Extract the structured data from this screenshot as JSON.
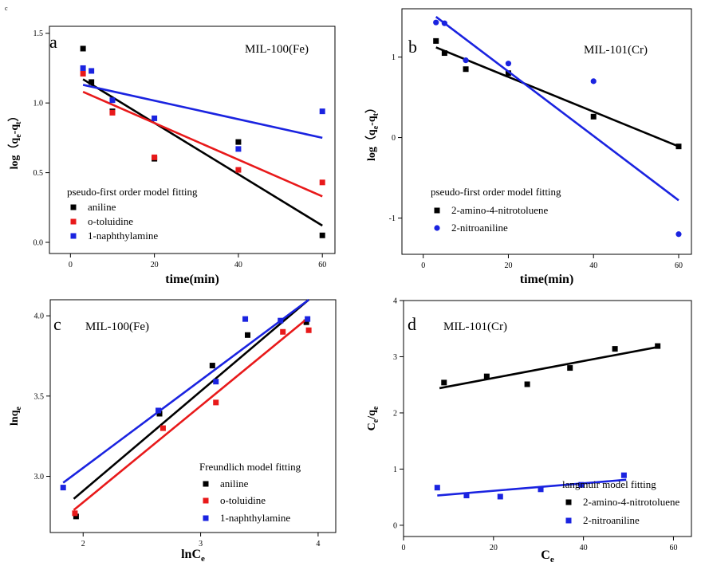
{
  "corner_mark": "c",
  "chart_data": [
    {
      "type": "scatter",
      "panel": "a",
      "title": "MIL-100(Fe)",
      "xlabel": "time(min)",
      "ylabel": "log（q",
      "ylabel_sub1": "e",
      "ylabel_mid": "-q",
      "ylabel_sub2": "t",
      "ylabel_end": "）",
      "xlim": [
        -5,
        63
      ],
      "ylim": [
        -0.08,
        1.55
      ],
      "xticks": [
        0,
        20,
        40,
        60
      ],
      "yticks": [
        0.0,
        0.5,
        1.0,
        1.5
      ],
      "ytick_labels": [
        "0.0",
        "0.5",
        "1.0",
        "1.5"
      ],
      "legend_title": "pseudo-first order model fitting",
      "legend_position": "bottom-left",
      "series": [
        {
          "name": "aniline",
          "color": "#000000",
          "marker": "square",
          "x": [
            3,
            5,
            10,
            20,
            40,
            60
          ],
          "y": [
            1.39,
            1.15,
            0.94,
            0.6,
            0.72,
            0.05
          ],
          "fit": [
            [
              3,
              1.17
            ],
            [
              60,
              0.12
            ]
          ]
        },
        {
          "name": "o-toluidine",
          "color": "#e8191a",
          "marker": "square",
          "x": [
            3,
            10,
            20,
            40,
            60
          ],
          "y": [
            1.21,
            0.93,
            0.61,
            0.52,
            0.43
          ],
          "fit": [
            [
              3,
              1.08
            ],
            [
              60,
              0.33
            ]
          ]
        },
        {
          "name": "1-naphthylamine",
          "color": "#1a23e0",
          "marker": "square",
          "x": [
            3,
            5,
            10,
            20,
            40,
            60
          ],
          "y": [
            1.25,
            1.23,
            1.02,
            0.89,
            0.67,
            0.94
          ],
          "fit": [
            [
              3,
              1.13
            ],
            [
              60,
              0.75
            ]
          ]
        }
      ]
    },
    {
      "type": "scatter",
      "panel": "b",
      "title": "MIL-101(Cr)",
      "xlabel": "time(min)",
      "ylabel": "log（q",
      "ylabel_sub1": "e",
      "ylabel_mid": "-q",
      "ylabel_sub2": "t",
      "ylabel_end": "）",
      "xlim": [
        -5,
        63
      ],
      "ylim": [
        -1.45,
        1.6
      ],
      "xticks": [
        0,
        20,
        40,
        60
      ],
      "yticks": [
        -1,
        0,
        1
      ],
      "ytick_labels": [
        "-1",
        "0",
        "1"
      ],
      "legend_title": "pseudo-first order model fitting",
      "legend_position": "bottom-left",
      "series": [
        {
          "name": "2-amino-4-nitrotoluene",
          "color": "#000000",
          "marker": "square",
          "x": [
            3,
            5,
            10,
            20,
            40,
            60
          ],
          "y": [
            1.2,
            1.05,
            0.85,
            0.8,
            0.26,
            -0.11
          ],
          "fit": [
            [
              3,
              1.12
            ],
            [
              60,
              -0.11
            ]
          ]
        },
        {
          "name": "2-nitroaniline",
          "color": "#1a23e0",
          "marker": "circle",
          "x": [
            3,
            5,
            10,
            20,
            40,
            60
          ],
          "y": [
            1.43,
            1.42,
            0.96,
            0.92,
            0.7,
            -1.2
          ],
          "fit": [
            [
              3,
              1.5
            ],
            [
              60,
              -0.78
            ]
          ]
        }
      ]
    },
    {
      "type": "scatter",
      "panel": "c",
      "title": "MIL-100(Fe)",
      "xlabel": "lnC",
      "xlabel_sub": "e",
      "ylabel": "lnq",
      "ylabel_sub1": "e",
      "ylabel_mid": "",
      "ylabel_sub2": "",
      "ylabel_end": "",
      "xlim": [
        1.72,
        4.15
      ],
      "ylim": [
        2.65,
        4.1
      ],
      "xticks": [
        2,
        3,
        4
      ],
      "yticks": [
        3.0,
        3.5,
        4.0
      ],
      "ytick_labels": [
        "3.0",
        "3.5",
        "4.0"
      ],
      "legend_title": "Freundlich model fitting",
      "legend_position": "bottom-right",
      "series": [
        {
          "name": "aniline",
          "color": "#000000",
          "marker": "square",
          "x": [
            1.94,
            2.65,
            3.1,
            3.4,
            3.9
          ],
          "y": [
            2.75,
            3.39,
            3.69,
            3.88,
            3.96
          ],
          "fit": [
            [
              1.92,
              2.86
            ],
            [
              3.92,
              4.1
            ]
          ]
        },
        {
          "name": "o-toluidine",
          "color": "#e8191a",
          "marker": "square",
          "x": [
            1.93,
            2.68,
            3.13,
            3.7,
            3.92
          ],
          "y": [
            2.77,
            3.3,
            3.46,
            3.9,
            3.91
          ],
          "fit": [
            [
              1.92,
              2.79
            ],
            [
              3.92,
              3.99
            ]
          ]
        },
        {
          "name": "1-naphthylamine",
          "color": "#1a23e0",
          "marker": "square",
          "x": [
            1.83,
            2.64,
            3.13,
            3.38,
            3.68,
            3.91
          ],
          "y": [
            2.93,
            3.41,
            3.59,
            3.98,
            3.97,
            3.98
          ],
          "fit": [
            [
              1.83,
              2.96
            ],
            [
              3.92,
              4.1
            ]
          ]
        }
      ]
    },
    {
      "type": "scatter",
      "panel": "d",
      "title": "MIL-101(Cr)",
      "xlabel": "C",
      "xlabel_sub": "e",
      "ylabel": "C",
      "ylabel_sub1": "e",
      "ylabel_mid": "/q",
      "ylabel_sub2": "e",
      "ylabel_end": "",
      "xlim": [
        0,
        64
      ],
      "ylim": [
        -0.2,
        4.0
      ],
      "xticks": [
        0,
        20,
        40,
        60
      ],
      "yticks": [
        0,
        1,
        2,
        3,
        4
      ],
      "ytick_labels": [
        "0",
        "1",
        "2",
        "3",
        "4"
      ],
      "legend_title": "langmuir model fitting",
      "legend_position": "bottom-right",
      "series": [
        {
          "name": "2-amino-4-nitrotoluene",
          "color": "#000000",
          "marker": "square",
          "x": [
            9,
            18.5,
            27.5,
            37,
            47,
            56.5
          ],
          "y": [
            2.54,
            2.65,
            2.51,
            2.8,
            3.14,
            3.19
          ],
          "fit": [
            [
              8,
              2.44
            ],
            [
              57,
              3.18
            ]
          ]
        },
        {
          "name": "2-nitroaniline",
          "color": "#1a23e0",
          "marker": "square",
          "x": [
            7.5,
            14,
            21.5,
            30.5,
            39.5,
            49
          ],
          "y": [
            0.67,
            0.53,
            0.51,
            0.64,
            0.72,
            0.89
          ],
          "fit": [
            [
              7.5,
              0.53
            ],
            [
              49.5,
              0.81
            ]
          ]
        }
      ]
    }
  ]
}
